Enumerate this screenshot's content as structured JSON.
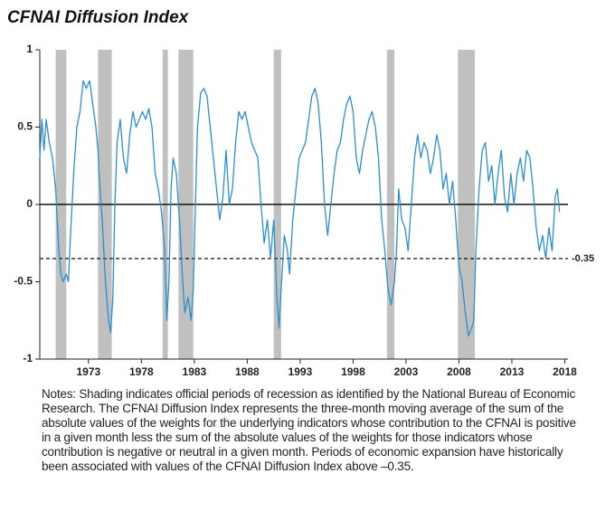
{
  "chart_data": {
    "type": "line",
    "title": "CFNAI Diffusion Index",
    "x": [
      1968.4,
      1968.6,
      1968.8,
      1969.0,
      1969.3,
      1969.6,
      1969.9,
      1970.2,
      1970.4,
      1970.6,
      1970.9,
      1971.1,
      1971.3,
      1971.6,
      1971.9,
      1972.2,
      1972.5,
      1972.8,
      1973.1,
      1973.4,
      1973.7,
      1973.9,
      1974.0,
      1974.3,
      1974.6,
      1974.9,
      1975.1,
      1975.3,
      1975.5,
      1975.7,
      1976.0,
      1976.3,
      1976.6,
      1976.9,
      1977.2,
      1977.5,
      1977.8,
      1978.1,
      1978.4,
      1978.7,
      1979.0,
      1979.3,
      1979.6,
      1979.9,
      1980.2,
      1980.4,
      1980.6,
      1980.8,
      1981.0,
      1981.3,
      1981.6,
      1981.9,
      1982.1,
      1982.4,
      1982.7,
      1982.9,
      1983.1,
      1983.3,
      1983.6,
      1983.9,
      1984.2,
      1984.5,
      1984.8,
      1985.1,
      1985.4,
      1985.7,
      1986.0,
      1986.3,
      1986.6,
      1986.9,
      1987.2,
      1987.5,
      1987.8,
      1988.1,
      1988.4,
      1988.7,
      1989.0,
      1989.3,
      1989.6,
      1989.9,
      1990.2,
      1990.5,
      1990.8,
      1991.0,
      1991.2,
      1991.5,
      1991.8,
      1992.0,
      1992.3,
      1992.6,
      1992.9,
      1993.2,
      1993.5,
      1993.8,
      1994.1,
      1994.4,
      1994.7,
      1995.0,
      1995.3,
      1995.6,
      1995.9,
      1996.2,
      1996.5,
      1996.8,
      1997.1,
      1997.4,
      1997.7,
      1998.0,
      1998.3,
      1998.6,
      1998.9,
      1999.2,
      1999.5,
      1999.8,
      2000.1,
      2000.4,
      2000.7,
      2001.0,
      2001.3,
      2001.6,
      2001.9,
      2002.1,
      2002.3,
      2002.6,
      2002.9,
      2003.2,
      2003.5,
      2003.8,
      2004.1,
      2004.4,
      2004.7,
      2005.0,
      2005.3,
      2005.6,
      2005.9,
      2006.2,
      2006.5,
      2006.8,
      2007.1,
      2007.4,
      2007.7,
      2008.0,
      2008.3,
      2008.6,
      2008.9,
      2009.2,
      2009.4,
      2009.6,
      2009.9,
      2010.2,
      2010.5,
      2010.8,
      2011.1,
      2011.4,
      2011.7,
      2012.0,
      2012.3,
      2012.6,
      2012.9,
      2013.2,
      2013.5,
      2013.8,
      2014.1,
      2014.4,
      2014.7,
      2015.0,
      2015.3,
      2015.6,
      2015.9,
      2016.2,
      2016.5,
      2016.8,
      2017.1,
      2017.3,
      2017.5
    ],
    "series": [
      {
        "name": "CFNAI Diffusion Index",
        "color": "#2a8fd0",
        "values": [
          0.3,
          0.55,
          0.35,
          0.55,
          0.4,
          0.3,
          0.1,
          -0.3,
          -0.45,
          -0.5,
          -0.45,
          -0.5,
          -0.2,
          0.2,
          0.5,
          0.6,
          0.8,
          0.75,
          0.8,
          0.65,
          0.5,
          0.35,
          0.2,
          -0.1,
          -0.5,
          -0.75,
          -0.83,
          -0.6,
          0,
          0.4,
          0.55,
          0.3,
          0.2,
          0.45,
          0.6,
          0.5,
          0.55,
          0.6,
          0.55,
          0.62,
          0.5,
          0.2,
          0.1,
          -0.05,
          -0.3,
          -0.75,
          -0.5,
          0.1,
          0.3,
          0.2,
          -0.1,
          -0.5,
          -0.7,
          -0.6,
          -0.75,
          -0.55,
          0,
          0.5,
          0.72,
          0.75,
          0.7,
          0.5,
          0.3,
          0.1,
          -0.1,
          0.05,
          0.35,
          0,
          0.1,
          0.4,
          0.6,
          0.55,
          0.6,
          0.5,
          0.4,
          0.35,
          0.3,
          0,
          -0.25,
          -0.1,
          -0.35,
          -0.1,
          -0.6,
          -0.8,
          -0.55,
          -0.2,
          -0.3,
          -0.45,
          -0.1,
          0.1,
          0.3,
          0.35,
          0.4,
          0.55,
          0.7,
          0.75,
          0.65,
          0.4,
          0,
          -0.2,
          0,
          0.2,
          0.35,
          0.4,
          0.55,
          0.65,
          0.7,
          0.6,
          0.3,
          0.2,
          0.35,
          0.45,
          0.55,
          0.6,
          0.5,
          0.3,
          -0.1,
          -0.3,
          -0.55,
          -0.65,
          -0.5,
          -0.3,
          0.1,
          -0.1,
          -0.15,
          -0.3,
          0,
          0.3,
          0.45,
          0.3,
          0.4,
          0.35,
          0.2,
          0.3,
          0.45,
          0.35,
          0.1,
          0.2,
          0,
          0.15,
          -0.1,
          -0.4,
          -0.5,
          -0.7,
          -0.85,
          -0.8,
          -0.75,
          -0.3,
          0.1,
          0.35,
          0.4,
          0.15,
          0.25,
          0,
          0.2,
          0.35,
          0.05,
          -0.05,
          0.2,
          0,
          0.2,
          0.3,
          0.15,
          0.35,
          0.3,
          0.1,
          -0.15,
          -0.3,
          -0.2,
          -0.35,
          -0.15,
          -0.3,
          0.05,
          0.1,
          -0.05
        ]
      }
    ],
    "shaded_periods": [
      [
        1969.9,
        1970.9
      ],
      [
        1973.9,
        1975.2
      ],
      [
        1980.0,
        1980.5
      ],
      [
        1981.5,
        1982.9
      ],
      [
        1990.5,
        1991.2
      ],
      [
        2001.2,
        2001.9
      ],
      [
        2007.9,
        2009.5
      ]
    ],
    "shade_color": "#c0c0c0",
    "reference_lines": [
      {
        "value": 0,
        "style": "solid"
      },
      {
        "value": -0.35,
        "style": "dashed"
      }
    ],
    "xlim": [
      1968.4,
      2018.3
    ],
    "xticks": [
      1973,
      1978,
      1983,
      1988,
      1993,
      1998,
      2003,
      2008,
      2013,
      2018
    ],
    "ylim": [
      -1,
      1
    ],
    "yticks": [
      -1,
      -0.5,
      0,
      0.5,
      1
    ],
    "notes": "Notes: Shading indicates official periods of recession as identified by the National Bureau of Economic Research. The CFNAI Diffusion Index represents the three-month moving average of the sum of the absolute values of the weights for the underlying indicators whose contribution to the CFNAI is positive in a given month less the sum of the absolute values of the weights for those indicators whose contribution is negative or neutral in a given month. Periods of economic expansion have historically been associated with values of the CFNAI Diffusion Index above –0.35."
  }
}
